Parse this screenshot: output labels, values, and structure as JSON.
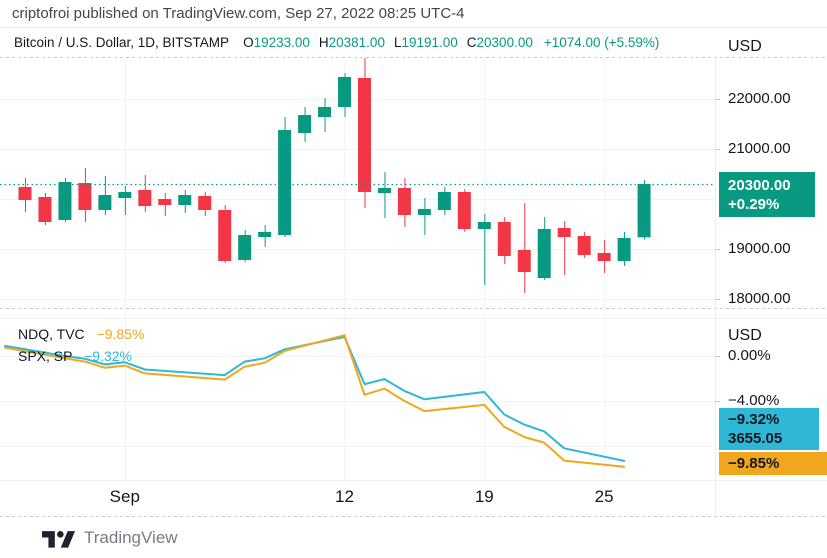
{
  "publish_bar": {
    "text": "criptofroi published on TradingView.com, Sep 27, 2022 08:25 UTC-4"
  },
  "symbol_bar": {
    "title": "Bitcoin / U.S. Dollar, 1D, BITSTAMP",
    "o_label": "O",
    "o": "19233.00",
    "h_label": "H",
    "h": "20381.00",
    "l_label": "L",
    "l": "19191.00",
    "c_label": "C",
    "c": "20300.00",
    "change": "+1074.00 (+5.59%)"
  },
  "price_scale": {
    "unit": "USD"
  },
  "pct_scale": {
    "unit": "USD"
  },
  "badges": {
    "last_price": {
      "price": "20300.00",
      "change": "+0.29%"
    },
    "spx": {
      "pct": "−9.32%",
      "price": "3655.05"
    },
    "ndq": {
      "pct": "−9.85%"
    }
  },
  "legend": {
    "ndq": {
      "name": "NDQ, TVC",
      "value": "−9.85%"
    },
    "spx": {
      "name": "SPX, SP",
      "value": "−9.32%"
    }
  },
  "footer": {
    "brand": "TradingView"
  },
  "colors": {
    "up": "#089981",
    "down": "#F23645",
    "ndq": "#F0A71D",
    "spx": "#2FB7D6",
    "grid": "#F0F2F5",
    "dashed_border": "#C9CCD2",
    "solid_border": "#EDEFF3",
    "tick": "#C6C9CF"
  },
  "chart_data": [
    {
      "type": "candlestick",
      "title": "Bitcoin / U.S. Dollar, 1D, BITSTAMP",
      "ylabel": "USD",
      "ylim": [
        17750,
        22950
      ],
      "grid": true,
      "y_ticks": [
        {
          "value": 22000,
          "label": "22000.00"
        },
        {
          "value": 21000,
          "label": "21000.00"
        },
        {
          "value": 19000,
          "label": "19000.00"
        },
        {
          "value": 18000,
          "label": "18000.00"
        }
      ],
      "y_gridlines": [
        22000,
        21000,
        20000,
        19000,
        18000
      ],
      "last_price": 20300,
      "last_price_change_pct": "+0.29%",
      "x_axis": {
        "labels": [
          {
            "text": "Sep",
            "day": 5
          },
          {
            "text": "12",
            "day": 16
          },
          {
            "text": "19",
            "day": 23
          },
          {
            "text": "25",
            "day": 29
          }
        ]
      },
      "candles_format": [
        "day",
        "open",
        "high",
        "low",
        "close"
      ],
      "candles": [
        [
          0,
          20240,
          20420,
          19740,
          19980
        ],
        [
          1,
          20040,
          20120,
          19480,
          19540
        ],
        [
          2,
          19580,
          20420,
          19540,
          20340
        ],
        [
          3,
          20320,
          20620,
          19540,
          19780
        ],
        [
          4,
          19780,
          20460,
          19680,
          20080
        ],
        [
          5,
          20020,
          20260,
          19680,
          20140
        ],
        [
          6,
          20180,
          20480,
          19740,
          19860
        ],
        [
          7,
          20000,
          20120,
          19660,
          19880
        ],
        [
          8,
          19880,
          20180,
          19720,
          20080
        ],
        [
          9,
          20060,
          20140,
          19660,
          19780
        ],
        [
          10,
          19780,
          19880,
          18720,
          18760
        ],
        [
          11,
          18780,
          19380,
          18740,
          19280
        ],
        [
          12,
          19240,
          19480,
          19040,
          19340
        ],
        [
          13,
          19280,
          21640,
          19240,
          21380
        ],
        [
          14,
          21320,
          21840,
          21140,
          21680
        ],
        [
          15,
          21640,
          22020,
          21340,
          21840
        ],
        [
          16,
          21840,
          22520,
          21640,
          22440
        ],
        [
          17,
          22420,
          22820,
          19820,
          20140
        ],
        [
          18,
          20120,
          20540,
          19620,
          20220
        ],
        [
          19,
          20220,
          20420,
          19440,
          19680
        ],
        [
          20,
          19680,
          20020,
          19280,
          19800
        ],
        [
          21,
          19780,
          20240,
          19680,
          20140
        ],
        [
          22,
          20140,
          20200,
          19340,
          19400
        ],
        [
          23,
          19400,
          19700,
          18280,
          19540
        ],
        [
          24,
          19540,
          19640,
          18700,
          18860
        ],
        [
          25,
          18980,
          19920,
          18120,
          18540
        ],
        [
          26,
          18420,
          19640,
          18380,
          19400
        ],
        [
          27,
          19420,
          19560,
          18480,
          19240
        ],
        [
          28,
          19260,
          19340,
          18820,
          18880
        ],
        [
          29,
          18920,
          19180,
          18520,
          18760
        ],
        [
          30,
          18760,
          19340,
          18660,
          19220
        ],
        [
          31,
          19233,
          20381,
          19191,
          20300
        ]
      ]
    },
    {
      "type": "line",
      "ylabel": "USD",
      "ylim": [
        -11.5,
        3.2
      ],
      "grid": true,
      "y_ticks": [
        {
          "value": 0,
          "label": "0.00%"
        },
        {
          "value": -4,
          "label": "−4.00%"
        }
      ],
      "y_gridlines": [
        0,
        -4,
        -8
      ],
      "series": [
        {
          "name": "SPX, SP",
          "change_pct": "−9.32%",
          "last_value": "3655.05",
          "color_key": "spx",
          "points": [
            [
              -1,
              0.9
            ],
            [
              2,
              0.0
            ],
            [
              3,
              -0.25
            ],
            [
              4,
              -0.75
            ],
            [
              5,
              -0.55
            ],
            [
              6,
              -1.2
            ],
            [
              10,
              -1.7
            ],
            [
              11,
              -0.5
            ],
            [
              12,
              -0.2
            ],
            [
              13,
              0.6
            ],
            [
              16,
              1.7
            ],
            [
              17,
              -2.5
            ],
            [
              18,
              -2.05
            ],
            [
              19,
              -3.1
            ],
            [
              20,
              -3.85
            ],
            [
              23,
              -3.2
            ],
            [
              24,
              -5.2
            ],
            [
              25,
              -6.1
            ],
            [
              26,
              -6.7
            ],
            [
              27,
              -8.2
            ],
            [
              30,
              -9.32
            ]
          ]
        },
        {
          "name": "NDQ, TVC",
          "change_pct": "−9.85%",
          "color_key": "ndq",
          "points": [
            [
              -1,
              0.75
            ],
            [
              2,
              -0.2
            ],
            [
              3,
              -0.5
            ],
            [
              4,
              -1.05
            ],
            [
              5,
              -0.85
            ],
            [
              6,
              -1.55
            ],
            [
              10,
              -2.1
            ],
            [
              11,
              -0.95
            ],
            [
              12,
              -0.6
            ],
            [
              13,
              0.45
            ],
            [
              16,
              1.85
            ],
            [
              17,
              -3.45
            ],
            [
              18,
              -2.9
            ],
            [
              19,
              -4.0
            ],
            [
              20,
              -4.9
            ],
            [
              23,
              -4.35
            ],
            [
              24,
              -6.3
            ],
            [
              25,
              -7.2
            ],
            [
              26,
              -7.7
            ],
            [
              27,
              -9.3
            ],
            [
              30,
              -9.85
            ]
          ]
        }
      ]
    }
  ]
}
